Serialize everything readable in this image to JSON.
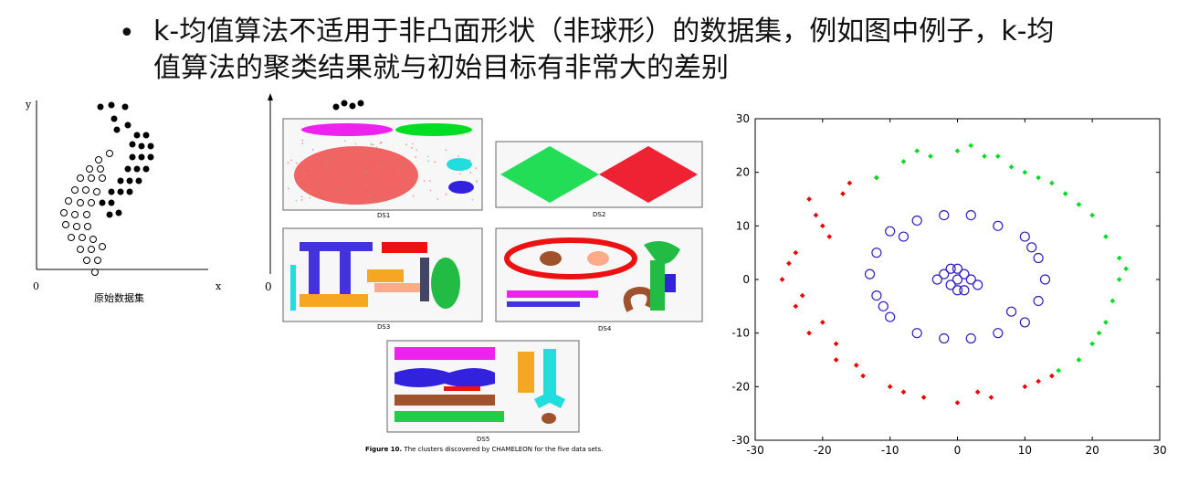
{
  "slide": {
    "bullet_symbol": "•",
    "text_line1": "k-均值算法不适用于非凸面形状（非球形）的数据集，例如图中例子，k-均",
    "text_line2": "值算法的聚类结果就与初始目标有非常大的差别"
  },
  "left_figure": {
    "axis_y": "y",
    "axis_x": "x",
    "origin": "0",
    "caption": "原始数据集"
  },
  "middle_figure": {
    "axis_origin": "0",
    "panels": [
      "DS1",
      "DS2",
      "DS3",
      "DS4",
      "DS5"
    ],
    "caption_bold": "Figure 10.",
    "caption_text": " The clusters discovered by CHAMELEON for the five data sets."
  },
  "colors": {
    "red": "#ee0000",
    "green": "#00dd22",
    "blue": "#2b1fbf",
    "magenta": "#ee22ee",
    "cyan": "#22dddd",
    "orange": "#f5a623",
    "brown": "#a0522d",
    "black": "#000000"
  },
  "chart_data": {
    "type": "scatter",
    "xlim": [
      -30,
      30
    ],
    "ylim": [
      -30,
      30
    ],
    "xticks": [
      -30,
      -20,
      -10,
      0,
      10,
      20,
      30
    ],
    "yticks": [
      -30,
      -20,
      -10,
      0,
      10,
      20,
      30
    ],
    "xtick_labels": [
      "-30",
      "-20",
      "-10",
      "0",
      "10",
      "20",
      "30"
    ],
    "ytick_labels": [
      "-30",
      "-20",
      "-10",
      "0",
      "10",
      "20",
      "30"
    ],
    "grid": false,
    "series": [
      {
        "marker": "dot",
        "color": "#ee0000",
        "points": [
          [
            -22,
            15
          ],
          [
            -20,
            10
          ],
          [
            -24,
            5
          ],
          [
            -26,
            0
          ],
          [
            -24,
            -5
          ],
          [
            -22,
            -10
          ],
          [
            -18,
            -15
          ],
          [
            -14,
            -18
          ],
          [
            -10,
            -20
          ],
          [
            -5,
            -22
          ],
          [
            0,
            -23
          ],
          [
            5,
            -22
          ],
          [
            10,
            -20
          ],
          [
            14,
            -18
          ],
          [
            -16,
            18
          ],
          [
            -12,
            19
          ],
          [
            -20,
            -8
          ],
          [
            -18,
            -12
          ],
          [
            -23,
            -3
          ],
          [
            -25,
            3
          ],
          [
            -21,
            12
          ],
          [
            -8,
            -21
          ],
          [
            3,
            -21
          ],
          [
            12,
            -19
          ],
          [
            -15,
            -16
          ],
          [
            -19,
            8
          ],
          [
            -17,
            16
          ]
        ]
      },
      {
        "marker": "dot",
        "color": "#00dd22",
        "points": [
          [
            -12,
            19
          ],
          [
            -8,
            22
          ],
          [
            -4,
            23
          ],
          [
            0,
            24
          ],
          [
            4,
            23
          ],
          [
            8,
            21
          ],
          [
            12,
            19
          ],
          [
            16,
            16
          ],
          [
            20,
            12
          ],
          [
            22,
            8
          ],
          [
            24,
            4
          ],
          [
            24,
            0
          ],
          [
            23,
            -4
          ],
          [
            22,
            -8
          ],
          [
            20,
            -12
          ],
          [
            18,
            -15
          ],
          [
            15,
            -17
          ],
          [
            -6,
            24
          ],
          [
            6,
            23
          ],
          [
            14,
            18
          ],
          [
            18,
            14
          ],
          [
            25,
            2
          ],
          [
            21,
            -10
          ],
          [
            10,
            20
          ],
          [
            2,
            25
          ]
        ]
      },
      {
        "marker": "circle",
        "color": "#2b1fbf",
        "points": [
          [
            -12,
            5
          ],
          [
            -10,
            9
          ],
          [
            -6,
            11
          ],
          [
            -2,
            12
          ],
          [
            2,
            12
          ],
          [
            6,
            10
          ],
          [
            10,
            8
          ],
          [
            12,
            4
          ],
          [
            13,
            0
          ],
          [
            12,
            -4
          ],
          [
            10,
            -8
          ],
          [
            6,
            -10
          ],
          [
            2,
            -11
          ],
          [
            -2,
            -11
          ],
          [
            -6,
            -10
          ],
          [
            -10,
            -7
          ],
          [
            -12,
            -3
          ],
          [
            -13,
            1
          ],
          [
            -2,
            1
          ],
          [
            0,
            2
          ],
          [
            2,
            0
          ],
          [
            0,
            -2
          ],
          [
            -1,
            -1
          ],
          [
            1,
            1
          ],
          [
            -3,
            0
          ],
          [
            3,
            -1
          ],
          [
            0,
            0
          ],
          [
            -1,
            2
          ],
          [
            1,
            -2
          ],
          [
            -8,
            8
          ],
          [
            8,
            -6
          ],
          [
            11,
            6
          ],
          [
            -11,
            -5
          ]
        ]
      }
    ]
  }
}
